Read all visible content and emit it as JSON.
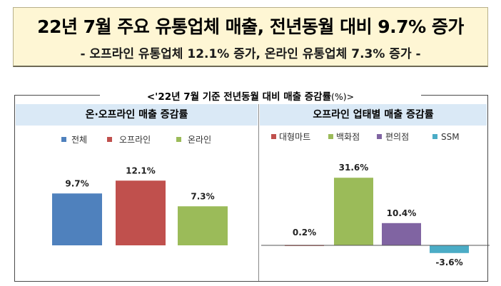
{
  "banner": {
    "title": "22년 7월 주요 유통업체 매출, 전년동월 대비 9.7% 증가",
    "subtitle": "- 오프라인 유통업체 12.1% 증가, 온라인 유통업체 7.3% 증가 -"
  },
  "section": {
    "title": "<'22년 7월 기준 전년동월 대비 매출 증감률",
    "unit": "(%)>"
  },
  "chart_data": [
    {
      "type": "bar",
      "title": "온·오프라인 매출 증감률",
      "categories": [
        "전체",
        "오프라인",
        "온라인"
      ],
      "values": [
        9.7,
        12.1,
        7.3
      ],
      "labels": [
        "9.7%",
        "12.1%",
        "7.3%"
      ],
      "colors": [
        "#4f81bd",
        "#c0504d",
        "#9bbb59"
      ],
      "legend": "top",
      "grid": false
    },
    {
      "type": "bar",
      "title": "오프라인 업태별 매출 증감률",
      "categories": [
        "대형마트",
        "백화점",
        "편의점",
        "SSM"
      ],
      "values": [
        0.2,
        31.6,
        10.4,
        -3.6
      ],
      "labels": [
        "0.2%",
        "31.6%",
        "10.4%",
        "-3.6%"
      ],
      "colors": [
        "#c0504d",
        "#9bbb59",
        "#8064a2",
        "#4bacc6"
      ],
      "legend": "top",
      "grid": false
    }
  ]
}
